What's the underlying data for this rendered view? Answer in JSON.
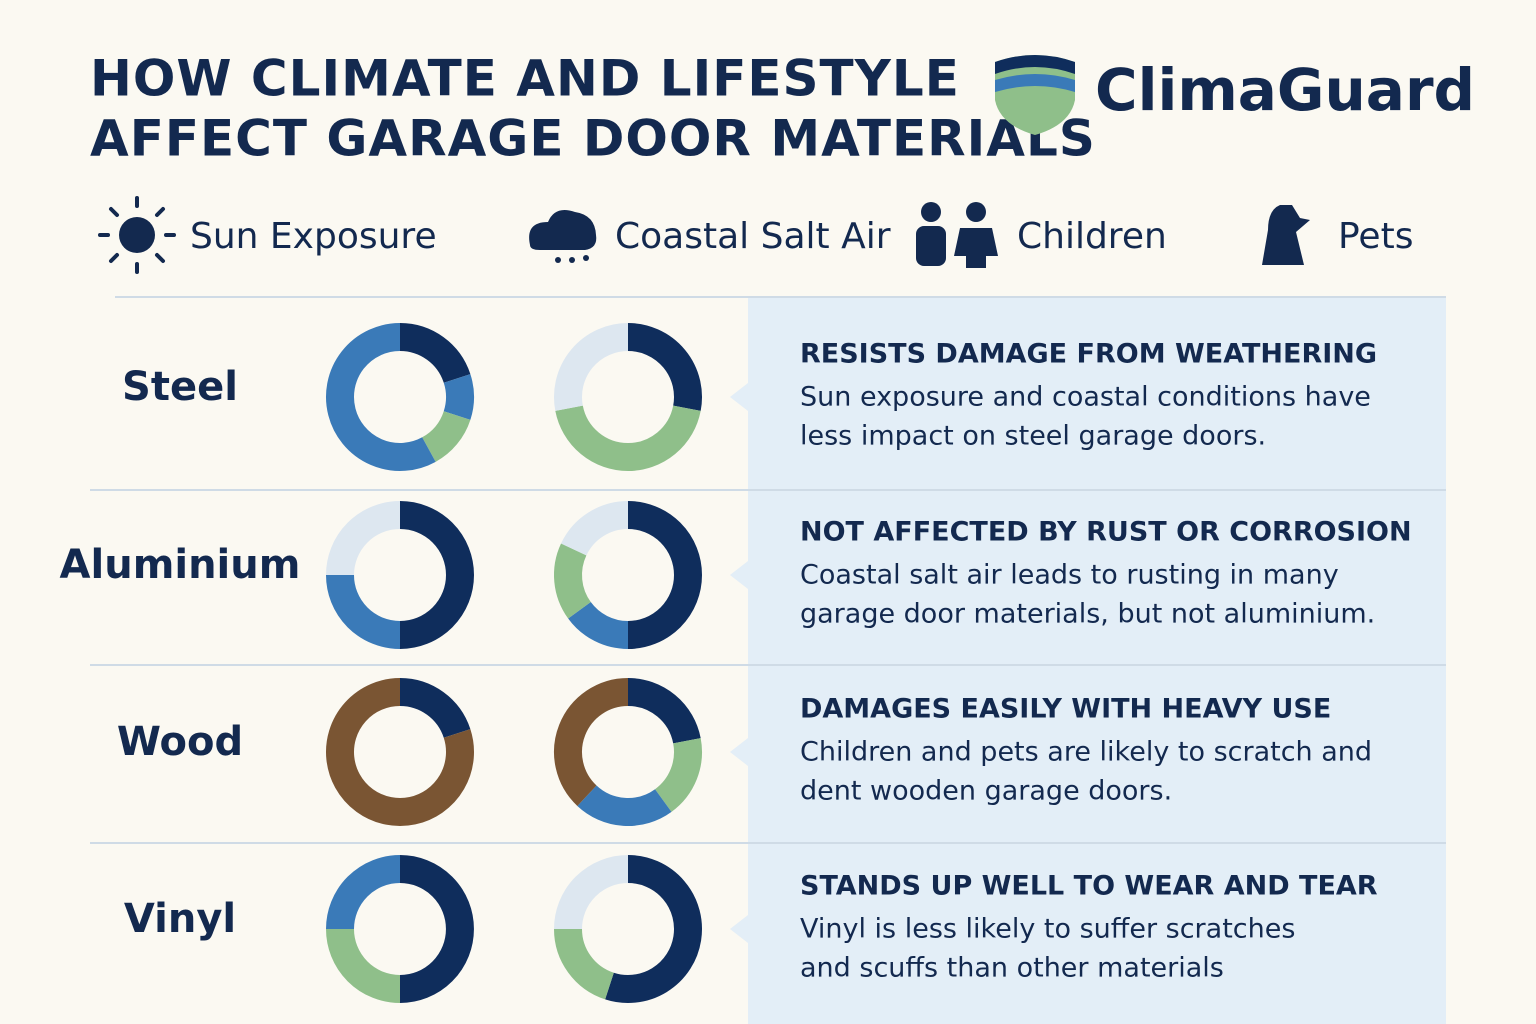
{
  "header": {
    "title_lines": [
      "HOW CLIMATE AND LIFESTYLE",
      "AFFECT GARAGE DOOR MATERIALS"
    ],
    "brand": "ClimaGuard"
  },
  "legend": [
    "Sun Exposure",
    "Coastal Salt Air",
    "Children",
    "Pets"
  ],
  "rows": [
    {
      "material": "Steel",
      "heading": "RESISTS DAMAGE FROM WEATHERING",
      "lines": [
        "Sun exposure and coastal conditions have",
        "less impact on steel garage doors."
      ],
      "charts": [
        {
          "segments": [
            {
              "color": "#0f2d5c",
              "value": 20
            },
            {
              "color": "#3a7ab8",
              "value": 10
            },
            {
              "color": "#8fbf8a",
              "value": 12
            },
            {
              "color": "#3a7ab8",
              "value": 58
            }
          ]
        },
        {
          "segments": [
            {
              "color": "#0f2d5c",
              "value": 28
            },
            {
              "color": "#8fbf8a",
              "value": 44
            },
            {
              "color": "#dde7f0",
              "value": 28
            }
          ]
        }
      ]
    },
    {
      "material": "Aluminium",
      "heading": "NOT AFFECTED BY RUST OR CORROSION",
      "lines": [
        "Coastal salt air leads to rusting in many",
        "garage door materials, but not aluminium."
      ],
      "charts": [
        {
          "segments": [
            {
              "color": "#0f2d5c",
              "value": 50
            },
            {
              "color": "#3a7ab8",
              "value": 25
            },
            {
              "color": "#dde7f0",
              "value": 25
            }
          ]
        },
        {
          "segments": [
            {
              "color": "#0f2d5c",
              "value": 50
            },
            {
              "color": "#3a7ab8",
              "value": 15
            },
            {
              "color": "#8fbf8a",
              "value": 17
            },
            {
              "color": "#dde7f0",
              "value": 18
            }
          ]
        }
      ]
    },
    {
      "material": "Wood",
      "heading": "DAMAGES EASILY WITH HEAVY USE",
      "lines": [
        "Children and pets are likely to scratch and",
        "dent wooden garage doors."
      ],
      "charts": [
        {
          "segments": [
            {
              "color": "#0f2d5c",
              "value": 20
            },
            {
              "color": "#7a5533",
              "value": 80
            }
          ]
        },
        {
          "segments": [
            {
              "color": "#0f2d5c",
              "value": 22
            },
            {
              "color": "#8fbf8a",
              "value": 18
            },
            {
              "color": "#3a7ab8",
              "value": 22
            },
            {
              "color": "#7a5533",
              "value": 38
            }
          ]
        }
      ]
    },
    {
      "material": "Vinyl",
      "heading": "STANDS UP WELL TO WEAR AND TEAR",
      "lines": [
        "Vinyl is less likely to suffer scratches",
        "and scuffs than other materials"
      ],
      "charts": [
        {
          "segments": [
            {
              "color": "#0f2d5c",
              "value": 50
            },
            {
              "color": "#8fbf8a",
              "value": 25
            },
            {
              "color": "#3a7ab8",
              "value": 25
            }
          ]
        },
        {
          "segments": [
            {
              "color": "#0f2d5c",
              "value": 55
            },
            {
              "color": "#8fbf8a",
              "value": 20
            },
            {
              "color": "#dde7f0",
              "value": 25
            }
          ]
        }
      ]
    }
  ]
}
